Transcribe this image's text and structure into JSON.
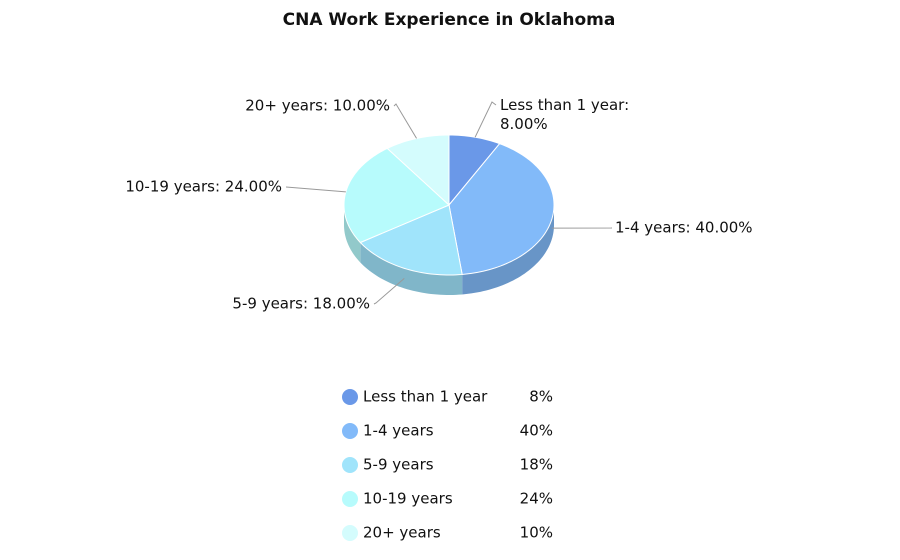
{
  "chart_data": {
    "type": "pie",
    "title": "CNA Work Experience in Oklahoma",
    "categories": [
      "Less than 1 year",
      "1-4 years",
      "5-9 years",
      "10-19 years",
      "20+ years"
    ],
    "values": [
      8,
      40,
      18,
      24,
      10
    ],
    "data_labels": [
      "Less than 1 year: 8.00%",
      "1-4 years: 40.00%",
      "5-9 years: 18.00%",
      "10-19 years: 24.00%",
      "20+ years: 10.00%"
    ],
    "value_labels": [
      "8%",
      "40%",
      "18%",
      "24%",
      "10%"
    ],
    "colors": [
      "#6a98e8",
      "#82baf9",
      "#a0e4fb",
      "#b7fbfc",
      "#d4fcfd"
    ]
  }
}
